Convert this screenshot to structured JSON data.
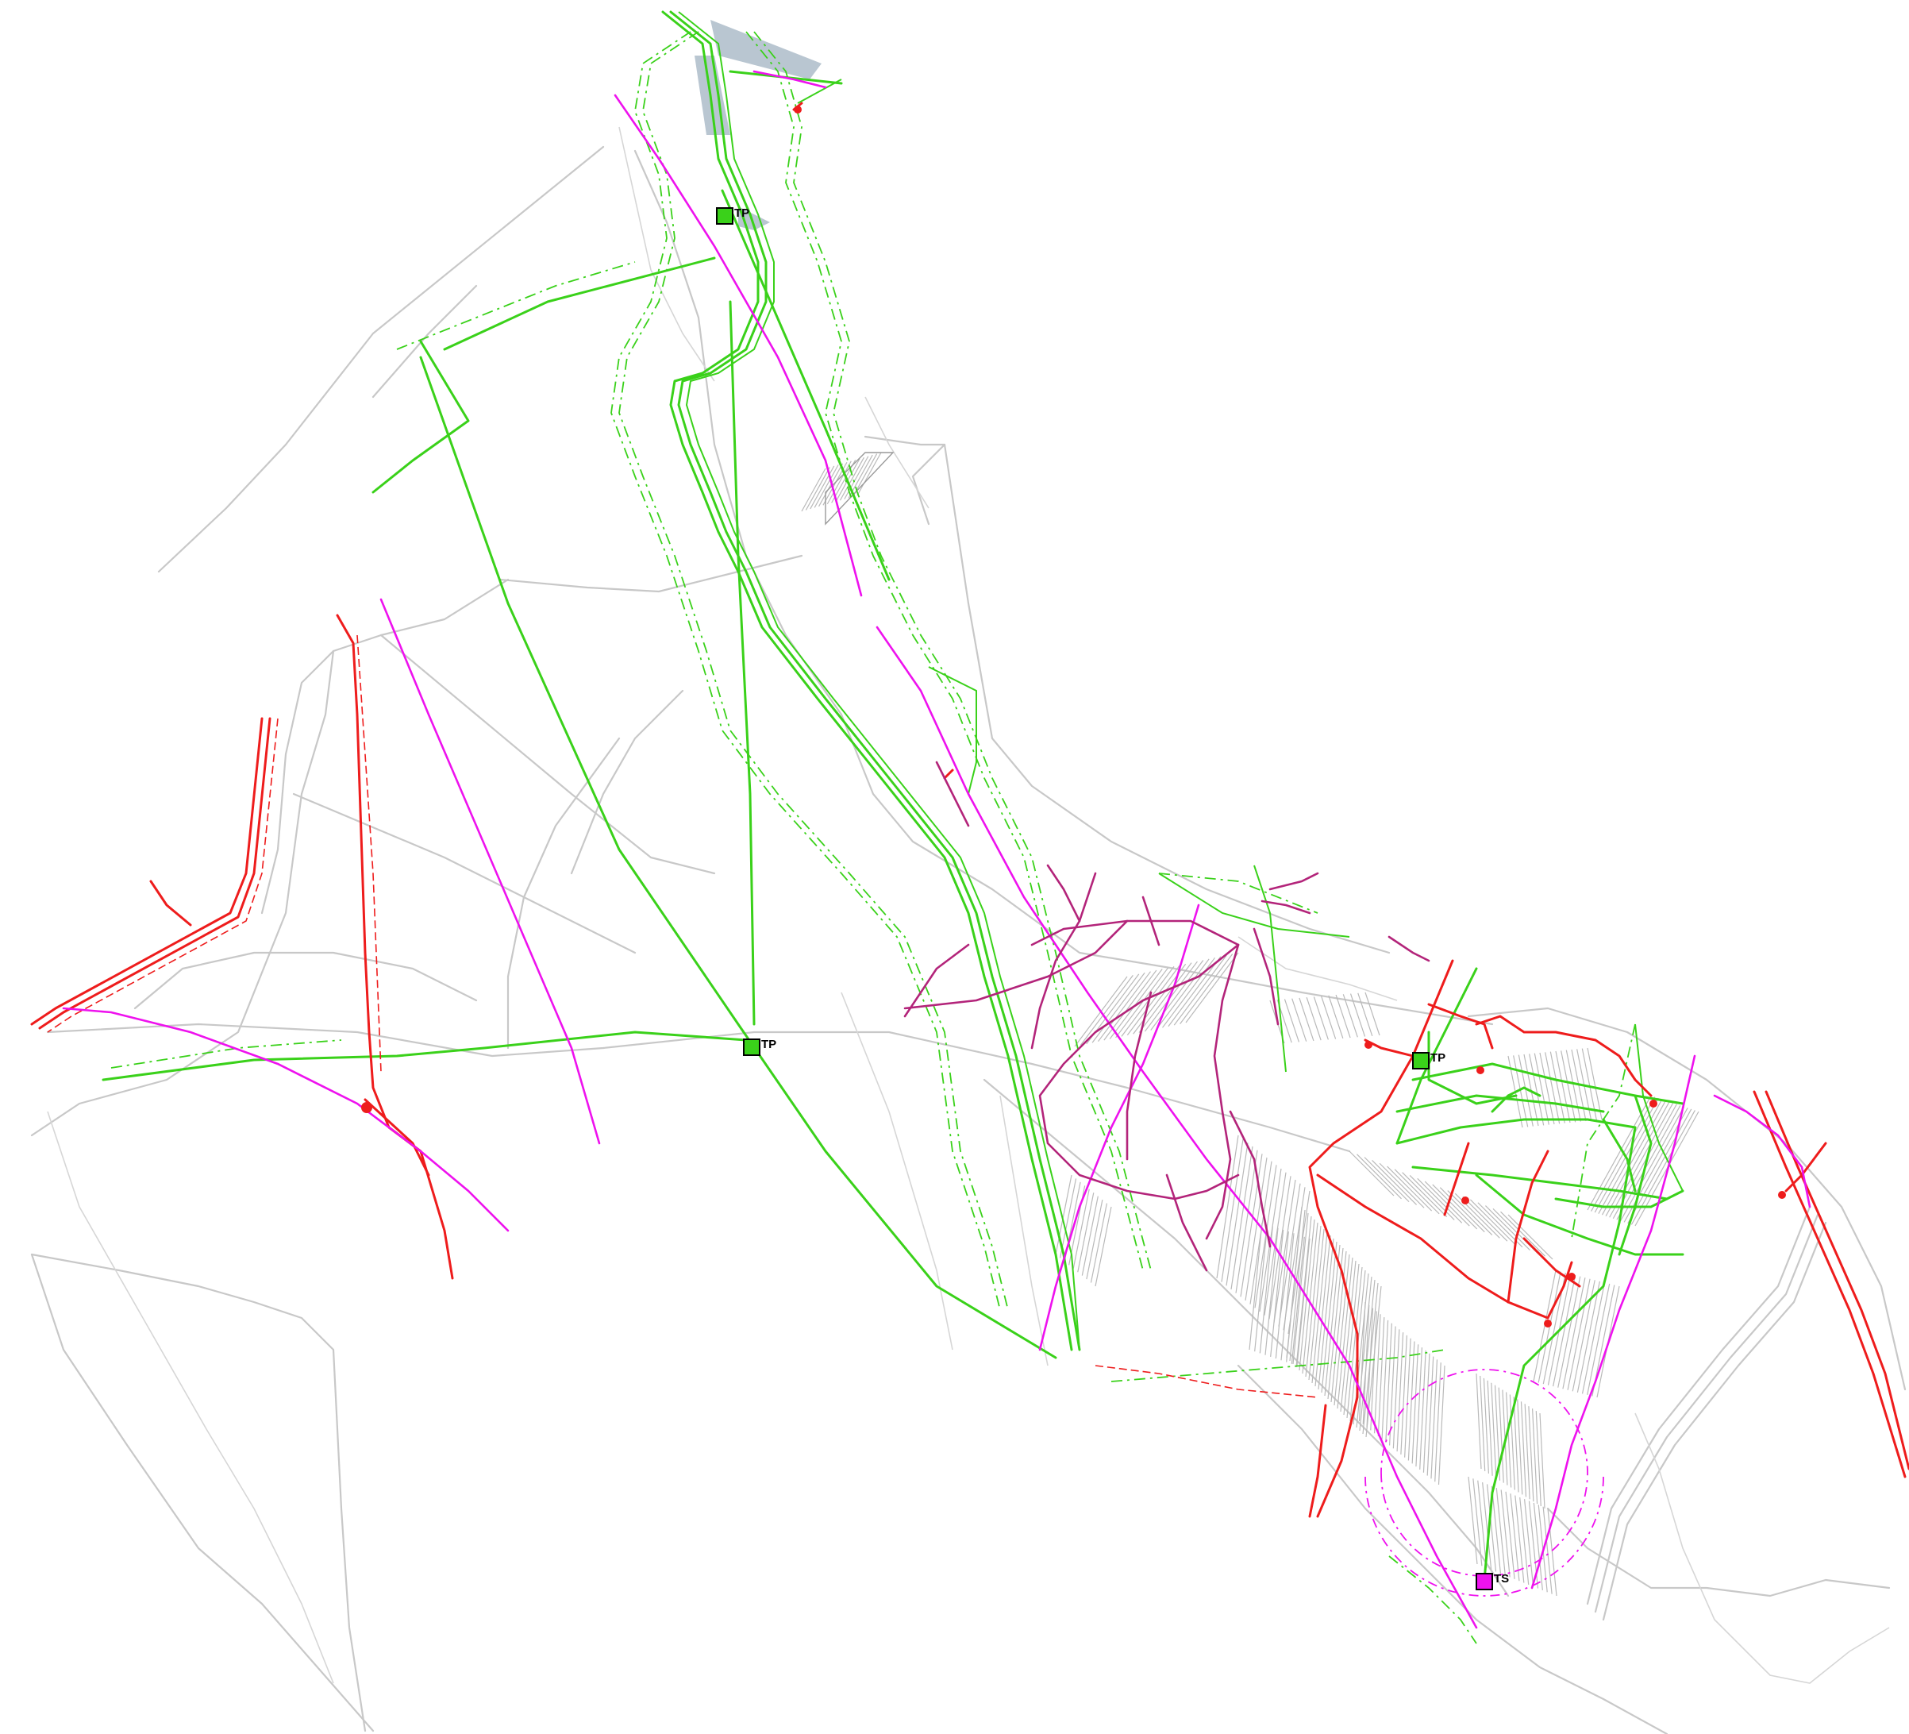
{
  "map": {
    "colors": {
      "background": "#ffffff",
      "road": "#c8c8c8",
      "water_supply": "#3ad11a",
      "gas": "#ee1c1c",
      "power_line": "#ee12ee",
      "sewer": "#b3247a",
      "basin": "#b9c6d1"
    },
    "stations": [
      {
        "id": "tp-north",
        "label": "TP"
      },
      {
        "id": "tp-center",
        "label": "TP"
      },
      {
        "id": "tp-east",
        "label": "TP"
      },
      {
        "id": "ts-south",
        "label": "TS"
      }
    ]
  }
}
